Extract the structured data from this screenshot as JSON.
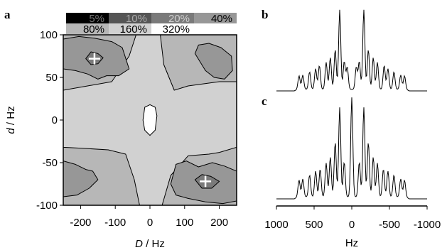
{
  "panel_labels": {
    "a": "a",
    "b": "b",
    "c": "c"
  },
  "legend": {
    "levels": [
      {
        "label": "5%",
        "color": "#000000",
        "text_color": "#777777"
      },
      {
        "label": "10%",
        "color": "#555555",
        "text_color": "#aaaaaa"
      },
      {
        "label": "20%",
        "color": "#7a7a7a",
        "text_color": "#cfcfcf"
      },
      {
        "label": "40%",
        "color": "#979797",
        "text_color": "#000000"
      },
      {
        "label": "80%",
        "color": "#b7b7b7",
        "text_color": "#000000"
      },
      {
        "label": "160%",
        "color": "#d1d1d1",
        "text_color": "#000000"
      },
      {
        "label": "320%",
        "color": "#ffffff",
        "text_color": "#000000"
      }
    ]
  },
  "chart_data": [
    {
      "type": "contour",
      "xlabel_italic": "D",
      "xlabel_unit": " / Hz",
      "ylabel_italic": "d",
      "ylabel_unit": " / Hz",
      "xlim": [
        -250,
        250
      ],
      "ylim": [
        -100,
        100
      ],
      "xticks": [
        -200,
        -100,
        0,
        100,
        200
      ],
      "yticks": [
        -100,
        -50,
        0,
        50,
        100
      ],
      "xtick_labels": [
        "-200",
        "-100",
        "0",
        "100",
        "200"
      ],
      "ytick_labels": [
        "-100",
        "-50",
        "0",
        "50",
        "100"
      ],
      "minima": [
        {
          "x": -160,
          "y": 72
        },
        {
          "x": 160,
          "y": -72
        }
      ],
      "regions": [
        {
          "level": "80%",
          "points": [
            [
              -250,
              100
            ],
            [
              250,
              100
            ],
            [
              250,
              -100
            ],
            [
              -250,
              -100
            ]
          ]
        },
        {
          "level": "160%",
          "points": [
            [
              -250,
              35
            ],
            [
              -180,
              40
            ],
            [
              -110,
              45
            ],
            [
              -60,
              75
            ],
            [
              -40,
              100
            ],
            [
              30,
              100
            ],
            [
              40,
              65
            ],
            [
              70,
              35
            ],
            [
              110,
              40
            ],
            [
              200,
              45
            ],
            [
              250,
              45
            ],
            [
              250,
              -32
            ],
            [
              200,
              -38
            ],
            [
              170,
              -40
            ],
            [
              110,
              -42
            ],
            [
              60,
              -65
            ],
            [
              35,
              -100
            ],
            [
              -30,
              -100
            ],
            [
              -45,
              -70
            ],
            [
              -70,
              -40
            ],
            [
              -120,
              -35
            ],
            [
              -200,
              -33
            ],
            [
              -250,
              -32
            ]
          ]
        },
        {
          "level": "40%",
          "points": [
            [
              -250,
              95
            ],
            [
              -205,
              98
            ],
            [
              -160,
              96
            ],
            [
              -110,
              92
            ],
            [
              -80,
              85
            ],
            [
              -60,
              60
            ],
            [
              -90,
              52
            ],
            [
              -125,
              52
            ],
            [
              -150,
              48
            ],
            [
              -180,
              54
            ],
            [
              -215,
              58
            ],
            [
              -250,
              60
            ]
          ]
        },
        {
          "level": "40%",
          "points": [
            [
              130,
              78
            ],
            [
              140,
              88
            ],
            [
              170,
              90
            ],
            [
              205,
              85
            ],
            [
              235,
              75
            ],
            [
              238,
              58
            ],
            [
              215,
              48
            ],
            [
              185,
              50
            ],
            [
              160,
              58
            ]
          ]
        },
        {
          "level": "40%",
          "points": [
            [
              -250,
              -48
            ],
            [
              -215,
              -52
            ],
            [
              -185,
              -58
            ],
            [
              -165,
              -60
            ],
            [
              -150,
              -70
            ],
            [
              -175,
              -80
            ],
            [
              -210,
              -88
            ],
            [
              -250,
              -90
            ]
          ]
        },
        {
          "level": "40%",
          "points": [
            [
              60,
              -75
            ],
            [
              75,
              -52
            ],
            [
              105,
              -48
            ],
            [
              140,
              -55
            ],
            [
              180,
              -50
            ],
            [
              215,
              -54
            ],
            [
              250,
              -60
            ],
            [
              250,
              -95
            ],
            [
              210,
              -98
            ],
            [
              160,
              -96
            ],
            [
              110,
              -92
            ],
            [
              75,
              -88
            ]
          ]
        },
        {
          "level": "20%",
          "points": [
            [
              -185,
              72
            ],
            [
              -170,
              80
            ],
            [
              -150,
              78
            ],
            [
              -135,
              73
            ],
            [
              -150,
              66
            ],
            [
              -170,
              65
            ]
          ]
        },
        {
          "level": "20%",
          "points": [
            [
              130,
              -70
            ],
            [
              150,
              -64
            ],
            [
              175,
              -66
            ],
            [
              200,
              -72
            ],
            [
              178,
              -80
            ],
            [
              150,
              -80
            ]
          ]
        },
        {
          "level": "320%",
          "points": [
            [
              -15,
              15
            ],
            [
              0,
              18
            ],
            [
              15,
              15
            ],
            [
              20,
              5
            ],
            [
              15,
              -12
            ],
            [
              0,
              -18
            ],
            [
              -15,
              -12
            ],
            [
              -20,
              0
            ]
          ]
        }
      ]
    },
    {
      "type": "line",
      "panel": "b",
      "x_reversed": true,
      "xlim": [
        -1000,
        1000
      ],
      "peaks": [
        [
          700,
          0.17
        ],
        [
          650,
          0.18
        ],
        [
          560,
          0.22
        ],
        [
          480,
          0.26
        ],
        [
          430,
          0.3
        ],
        [
          340,
          0.34
        ],
        [
          285,
          0.4
        ],
        [
          220,
          0.5
        ],
        [
          160,
          1.0
        ],
        [
          100,
          0.35
        ],
        [
          60,
          0.28
        ],
        [
          -60,
          0.28
        ],
        [
          -100,
          0.35
        ],
        [
          -160,
          1.0
        ],
        [
          -220,
          0.5
        ],
        [
          -285,
          0.4
        ],
        [
          -340,
          0.34
        ],
        [
          -430,
          0.3
        ],
        [
          -480,
          0.26
        ],
        [
          -560,
          0.22
        ],
        [
          -650,
          0.18
        ],
        [
          -700,
          0.17
        ]
      ]
    },
    {
      "type": "line",
      "panel": "c",
      "x_reversed": true,
      "xlim": [
        -1000,
        1000
      ],
      "xlabel": "Hz",
      "xticks": [
        1000,
        500,
        0,
        -500,
        -1000
      ],
      "xtick_labels": [
        "1000",
        "500",
        "0",
        "-500",
        "-1000"
      ],
      "peaks": [
        [
          700,
          0.17
        ],
        [
          650,
          0.18
        ],
        [
          560,
          0.22
        ],
        [
          480,
          0.26
        ],
        [
          420,
          0.28
        ],
        [
          340,
          0.34
        ],
        [
          285,
          0.4
        ],
        [
          220,
          0.55
        ],
        [
          160,
          0.9
        ],
        [
          100,
          0.35
        ],
        [
          0,
          1.0
        ],
        [
          -100,
          0.35
        ],
        [
          -160,
          0.9
        ],
        [
          -220,
          0.55
        ],
        [
          -285,
          0.4
        ],
        [
          -340,
          0.34
        ],
        [
          -420,
          0.28
        ],
        [
          -480,
          0.26
        ],
        [
          -560,
          0.22
        ],
        [
          -650,
          0.18
        ],
        [
          -700,
          0.17
        ]
      ]
    }
  ]
}
